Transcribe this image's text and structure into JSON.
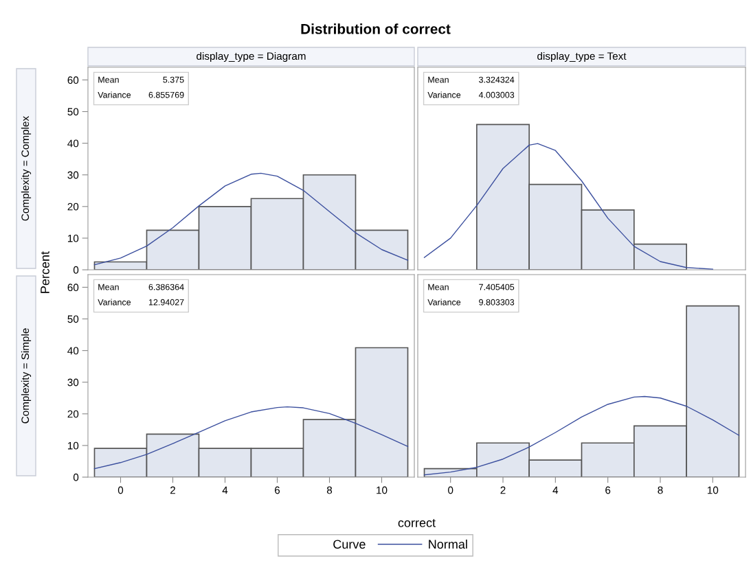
{
  "chart_data": [
    {
      "type": "histogram",
      "title": "Distribution of correct",
      "subtitle": "display_type = Diagram",
      "ylabel": "Percent",
      "annotations": [
        "Mean",
        "5.375",
        "Variance",
        "6.855769",
        "Complexity = Complex"
      ],
      "bins": [
        -1,
        1,
        3,
        5,
        7,
        9,
        11
      ],
      "values": [
        2.5,
        12.5,
        20,
        22.5,
        30,
        12.5
      ],
      "color": "#e1e6f0",
      "xlim": [
        -1.25,
        11.25
      ],
      "ylim": [
        0,
        64
      ],
      "xticks": [
        0,
        2,
        4,
        6,
        8,
        10
      ],
      "yticks": [
        0,
        10,
        20,
        30,
        40,
        50,
        60
      ],
      "tick_labels": "y",
      "grid": false,
      "series": [
        {
          "type": "line",
          "color": "#3b4f9e",
          "x": [
            -1,
            0,
            1,
            2,
            3,
            4,
            5,
            5.375,
            6,
            7,
            8,
            9,
            10,
            11
          ],
          "values": [
            1.6,
            3.7,
            7.5,
            13.3,
            20.2,
            26.5,
            30.2,
            30.5,
            29.6,
            25.1,
            18.4,
            11.7,
            6.4,
            3.0
          ]
        }
      ]
    },
    {
      "type": "histogram",
      "subtitle": "display_type = Text",
      "annotations": [
        "Mean",
        "3.324324",
        "Variance",
        "4.003003"
      ],
      "bins": [
        1,
        3,
        5,
        7,
        9
      ],
      "values": [
        45.9,
        27.0,
        18.9,
        8.1
      ],
      "color": "#e1e6f0",
      "xlim": [
        -1.25,
        11.25
      ],
      "ylim": [
        0,
        64
      ],
      "xticks": [
        0,
        2,
        4,
        6,
        8,
        10
      ],
      "yticks": [
        0,
        10,
        20,
        30,
        40,
        50,
        60
      ],
      "tick_labels": false,
      "grid": false,
      "series": [
        {
          "type": "line",
          "color": "#3b4f9e",
          "x": [
            -1,
            0,
            1,
            2,
            3,
            3.324,
            4,
            5,
            6,
            7,
            8,
            9,
            10
          ],
          "values": [
            3.9,
            10.0,
            20.3,
            32.0,
            39.4,
            39.9,
            37.7,
            28.1,
            16.3,
            7.4,
            2.6,
            0.7,
            0.2
          ]
        }
      ]
    },
    {
      "type": "histogram",
      "xlabel": "correct",
      "legend_title": "Curve",
      "legend": "bottom",
      "annotations": [
        "Mean",
        "6.386364",
        "Variance",
        "12.94027",
        "Complexity = Simple"
      ],
      "bins": [
        -1,
        1,
        3,
        5,
        7,
        9,
        11
      ],
      "values": [
        9.1,
        13.6,
        9.1,
        9.1,
        18.2,
        40.9
      ],
      "color": "#e1e6f0",
      "xlim": [
        -1.25,
        11.25
      ],
      "ylim": [
        0,
        64
      ],
      "xticks": [
        0,
        2,
        4,
        6,
        8,
        10
      ],
      "yticks": [
        0,
        10,
        20,
        30,
        40,
        50,
        60
      ],
      "grid": false,
      "series": [
        {
          "type": "line",
          "name": "Normal",
          "color": "#3b4f9e",
          "x": [
            -1,
            0,
            1,
            2,
            3,
            4,
            5,
            6,
            6.386,
            7,
            8,
            9,
            10,
            11
          ],
          "values": [
            2.7,
            4.6,
            7.2,
            10.6,
            14.2,
            17.8,
            20.6,
            22.0,
            22.2,
            21.9,
            20.1,
            17.0,
            13.4,
            9.7
          ]
        }
      ]
    },
    {
      "type": "histogram",
      "annotations": [
        "Mean",
        "7.405405",
        "Variance",
        "9.803303"
      ],
      "bins": [
        -1,
        1,
        3,
        5,
        7,
        9,
        11
      ],
      "values": [
        2.7,
        10.8,
        5.4,
        10.8,
        16.2,
        54.1
      ],
      "color": "#e1e6f0",
      "xlim": [
        -1.25,
        11.25
      ],
      "ylim": [
        0,
        64
      ],
      "xticks": [
        0,
        2,
        4,
        6,
        8,
        10
      ],
      "yticks": [
        0,
        10,
        20,
        30,
        40,
        50,
        60
      ],
      "tick_labels": "x",
      "grid": false,
      "series": [
        {
          "type": "line",
          "color": "#3b4f9e",
          "x": [
            -1,
            0,
            1,
            2,
            3,
            4,
            5,
            6,
            7,
            7.405,
            8,
            9,
            10,
            11
          ],
          "values": [
            0.7,
            1.6,
            3.1,
            5.7,
            9.5,
            14.1,
            19.0,
            23.0,
            25.3,
            25.5,
            25.0,
            22.4,
            18.1,
            13.2
          ]
        }
      ]
    }
  ]
}
